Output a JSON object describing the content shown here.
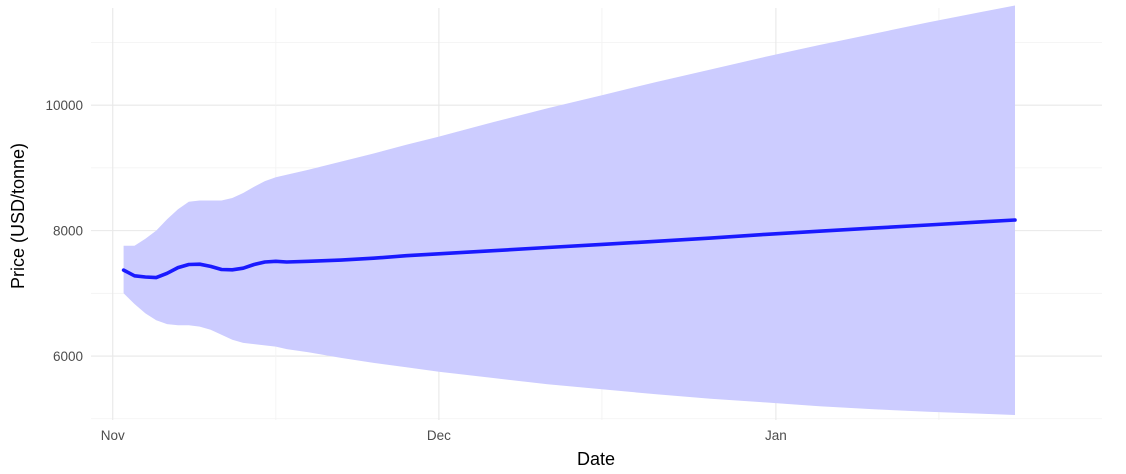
{
  "chart_data": {
    "type": "line",
    "title": "",
    "xlabel": "Date",
    "ylabel": "Price (USD/tonne)",
    "x_ticks": [
      {
        "date": "2023-11-01",
        "label": "Nov"
      },
      {
        "date": "2023-12-01",
        "label": "Dec"
      },
      {
        "date": "2024-01-01",
        "label": "Jan"
      }
    ],
    "y_ticks": [
      6000,
      8000,
      10000
    ],
    "xlim": [
      "2023-10-30",
      "2024-01-31"
    ],
    "ylim": [
      4980,
      11550
    ],
    "grid": true,
    "colors": {
      "line": "#1a1aff",
      "band": "#ccccff"
    },
    "series": [
      {
        "x": [
          "2023-11-02",
          "2023-11-03",
          "2023-11-04",
          "2023-11-05",
          "2023-11-06",
          "2023-11-07",
          "2023-11-08",
          "2023-11-09",
          "2023-11-10",
          "2023-11-11",
          "2023-11-12",
          "2023-11-13",
          "2023-11-14",
          "2023-11-15",
          "2023-11-16",
          "2023-11-17",
          "2023-11-19",
          "2023-11-22",
          "2023-11-25",
          "2023-11-28",
          "2023-12-01",
          "2023-12-06",
          "2023-12-11",
          "2023-12-16",
          "2023-12-21",
          "2023-12-26",
          "2023-12-31",
          "2024-01-05",
          "2024-01-10",
          "2024-01-15",
          "2024-01-20",
          "2024-01-23"
        ],
        "y": [
          7370,
          7280,
          7260,
          7250,
          7320,
          7410,
          7460,
          7465,
          7430,
          7380,
          7375,
          7400,
          7460,
          7500,
          7510,
          7500,
          7510,
          7530,
          7560,
          7600,
          7630,
          7680,
          7730,
          7780,
          7830,
          7880,
          7940,
          7990,
          8040,
          8090,
          8140,
          8170
        ],
        "upper": [
          7760,
          7760,
          7870,
          8000,
          8180,
          8340,
          8460,
          8480,
          8480,
          8480,
          8520,
          8600,
          8700,
          8790,
          8850,
          8890,
          8970,
          9100,
          9230,
          9370,
          9500,
          9730,
          9950,
          10160,
          10370,
          10570,
          10770,
          10960,
          11140,
          11320,
          11490,
          11590
        ],
        "lower": [
          7000,
          6830,
          6680,
          6570,
          6510,
          6490,
          6490,
          6470,
          6420,
          6340,
          6260,
          6210,
          6190,
          6170,
          6150,
          6110,
          6060,
          5970,
          5890,
          5820,
          5750,
          5650,
          5550,
          5470,
          5390,
          5320,
          5260,
          5200,
          5150,
          5110,
          5080,
          5060
        ]
      }
    ]
  }
}
